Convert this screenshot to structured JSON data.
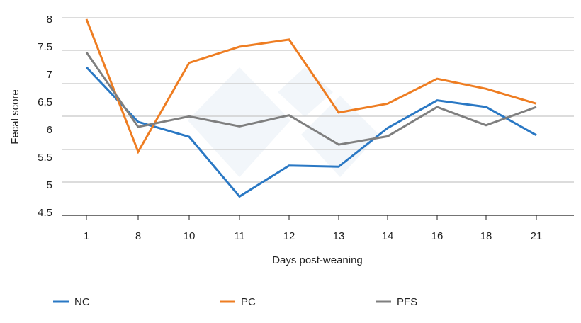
{
  "chart_data": {
    "type": "line",
    "title": "",
    "xlabel": "Days post-weaning",
    "ylabel": "Fecal score",
    "categories": [
      "1",
      "8",
      "10",
      "11",
      "12",
      "13",
      "14",
      "16",
      "18",
      "21"
    ],
    "y_tick_labels": [
      "8",
      "7.5",
      "7",
      "6,5",
      "6",
      "5.5",
      "5",
      "4.5"
    ],
    "ylim": [
      4.5,
      8
    ],
    "grid": true,
    "legend_position": "bottom",
    "series": [
      {
        "name": "NC",
        "color": "#2a78c4",
        "values": [
          7.13,
          6.14,
          5.87,
          4.79,
          5.35,
          5.33,
          6.03,
          6.53,
          6.41,
          5.9
        ]
      },
      {
        "name": "PC",
        "color": "#ee7d22",
        "values": [
          8.0,
          5.6,
          7.21,
          7.5,
          7.63,
          6.31,
          6.47,
          6.92,
          6.74,
          6.47
        ]
      },
      {
        "name": "PFS",
        "color": "#7f7f7f",
        "values": [
          7.4,
          6.05,
          6.24,
          6.06,
          6.26,
          5.73,
          5.88,
          6.41,
          6.08,
          6.41
        ]
      }
    ]
  }
}
